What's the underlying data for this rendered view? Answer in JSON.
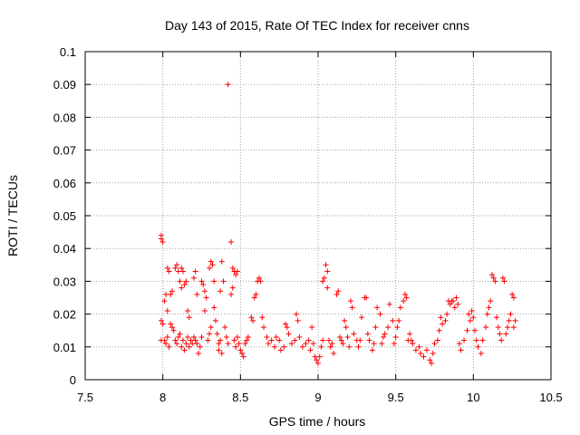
{
  "chart_data": {
    "type": "scatter",
    "title": "Day 143 of 2015, Rate Of TEC Index for receiver cnns",
    "xlabel": "GPS time / hours",
    "ylabel": "ROTI / TECUs",
    "xlim": [
      7.5,
      10.5
    ],
    "ylim": [
      0,
      0.1
    ],
    "xticks": [
      7.5,
      8,
      8.5,
      9,
      9.5,
      10,
      10.5
    ],
    "xtick_labels": [
      "7.5",
      "8",
      "8.5",
      "9",
      "9.5",
      "10",
      "10.5"
    ],
    "yticks": [
      0,
      0.01,
      0.02,
      0.03,
      0.04,
      0.05,
      0.06,
      0.07,
      0.08,
      0.09,
      0.1
    ],
    "ytick_labels": [
      "0",
      "0.01",
      "0.02",
      "0.03",
      "0.04",
      "0.05",
      "0.06",
      "0.07",
      "0.08",
      "0.09",
      "0.1"
    ],
    "grid": true,
    "marker": "+",
    "color": "#ff0000",
    "series": [
      {
        "name": "ROTI",
        "points": [
          [
            7.99,
            0.044
          ],
          [
            7.99,
            0.043
          ],
          [
            8.0,
            0.042
          ],
          [
            7.99,
            0.018
          ],
          [
            8.0,
            0.017
          ],
          [
            8.01,
            0.012
          ],
          [
            8.02,
            0.011
          ],
          [
            7.99,
            0.012
          ],
          [
            8.03,
            0.013
          ],
          [
            8.04,
            0.01
          ],
          [
            8.01,
            0.024
          ],
          [
            8.02,
            0.026
          ],
          [
            8.03,
            0.034
          ],
          [
            8.04,
            0.033
          ],
          [
            8.05,
            0.026
          ],
          [
            8.06,
            0.027
          ],
          [
            8.03,
            0.021
          ],
          [
            8.05,
            0.017
          ],
          [
            8.06,
            0.016
          ],
          [
            8.07,
            0.015
          ],
          [
            8.08,
            0.012
          ],
          [
            8.09,
            0.011
          ],
          [
            8.1,
            0.013
          ],
          [
            8.08,
            0.034
          ],
          [
            8.09,
            0.035
          ],
          [
            8.1,
            0.033
          ],
          [
            8.11,
            0.03
          ],
          [
            8.12,
            0.028
          ],
          [
            8.12,
            0.034
          ],
          [
            8.13,
            0.033
          ],
          [
            8.11,
            0.014
          ],
          [
            8.12,
            0.01
          ],
          [
            8.13,
            0.012
          ],
          [
            8.14,
            0.009
          ],
          [
            8.15,
            0.011
          ],
          [
            8.14,
            0.029
          ],
          [
            8.15,
            0.03
          ],
          [
            8.16,
            0.021
          ],
          [
            8.17,
            0.019
          ],
          [
            8.16,
            0.013
          ],
          [
            8.17,
            0.01
          ],
          [
            8.18,
            0.012
          ],
          [
            8.19,
            0.011
          ],
          [
            8.2,
            0.013
          ],
          [
            8.2,
            0.031
          ],
          [
            8.21,
            0.033
          ],
          [
            8.22,
            0.026
          ],
          [
            8.21,
            0.012
          ],
          [
            8.22,
            0.011
          ],
          [
            8.23,
            0.008
          ],
          [
            8.24,
            0.01
          ],
          [
            8.25,
            0.013
          ],
          [
            8.25,
            0.03
          ],
          [
            8.26,
            0.029
          ],
          [
            8.27,
            0.021
          ],
          [
            8.27,
            0.027
          ],
          [
            8.28,
            0.025
          ],
          [
            8.29,
            0.012
          ],
          [
            8.3,
            0.014
          ],
          [
            8.31,
            0.016
          ],
          [
            8.3,
            0.034
          ],
          [
            8.31,
            0.036
          ],
          [
            8.32,
            0.035
          ],
          [
            8.33,
            0.03
          ],
          [
            8.33,
            0.022
          ],
          [
            8.34,
            0.018
          ],
          [
            8.35,
            0.014
          ],
          [
            8.36,
            0.011
          ],
          [
            8.36,
            0.009
          ],
          [
            8.37,
            0.012
          ],
          [
            8.38,
            0.008
          ],
          [
            8.37,
            0.027
          ],
          [
            8.38,
            0.036
          ],
          [
            8.39,
            0.03
          ],
          [
            8.4,
            0.016
          ],
          [
            8.41,
            0.013
          ],
          [
            8.42,
            0.011
          ],
          [
            8.42,
            0.09
          ],
          [
            8.44,
            0.042
          ],
          [
            8.45,
            0.034
          ],
          [
            8.46,
            0.033
          ],
          [
            8.47,
            0.032
          ],
          [
            8.48,
            0.033
          ],
          [
            8.44,
            0.026
          ],
          [
            8.45,
            0.028
          ],
          [
            8.46,
            0.012
          ],
          [
            8.47,
            0.01
          ],
          [
            8.48,
            0.013
          ],
          [
            8.49,
            0.011
          ],
          [
            8.5,
            0.009
          ],
          [
            8.51,
            0.008
          ],
          [
            8.52,
            0.007
          ],
          [
            8.53,
            0.011
          ],
          [
            8.54,
            0.012
          ],
          [
            8.55,
            0.013
          ],
          [
            8.57,
            0.019
          ],
          [
            8.58,
            0.018
          ],
          [
            8.59,
            0.025
          ],
          [
            8.6,
            0.026
          ],
          [
            8.61,
            0.03
          ],
          [
            8.62,
            0.031
          ],
          [
            8.63,
            0.03
          ],
          [
            8.64,
            0.019
          ],
          [
            8.65,
            0.016
          ],
          [
            8.67,
            0.013
          ],
          [
            8.68,
            0.011
          ],
          [
            8.7,
            0.012
          ],
          [
            8.72,
            0.01
          ],
          [
            8.73,
            0.013
          ],
          [
            8.75,
            0.012
          ],
          [
            8.76,
            0.009
          ],
          [
            8.78,
            0.01
          ],
          [
            8.79,
            0.017
          ],
          [
            8.8,
            0.016
          ],
          [
            8.81,
            0.014
          ],
          [
            8.83,
            0.011
          ],
          [
            8.85,
            0.012
          ],
          [
            8.86,
            0.02
          ],
          [
            8.87,
            0.018
          ],
          [
            8.88,
            0.013
          ],
          [
            8.9,
            0.01
          ],
          [
            8.92,
            0.011
          ],
          [
            8.94,
            0.012
          ],
          [
            8.95,
            0.009
          ],
          [
            8.96,
            0.016
          ],
          [
            8.97,
            0.011
          ],
          [
            8.98,
            0.007
          ],
          [
            8.99,
            0.006
          ],
          [
            9.0,
            0.005
          ],
          [
            9.01,
            0.007
          ],
          [
            9.02,
            0.01
          ],
          [
            9.03,
            0.012
          ],
          [
            9.03,
            0.03
          ],
          [
            9.04,
            0.031
          ],
          [
            9.05,
            0.035
          ],
          [
            9.06,
            0.033
          ],
          [
            9.06,
            0.028
          ],
          [
            9.07,
            0.012
          ],
          [
            9.08,
            0.01
          ],
          [
            9.09,
            0.011
          ],
          [
            9.1,
            0.008
          ],
          [
            9.12,
            0.026
          ],
          [
            9.13,
            0.027
          ],
          [
            9.14,
            0.013
          ],
          [
            9.15,
            0.012
          ],
          [
            9.16,
            0.011
          ],
          [
            9.17,
            0.018
          ],
          [
            9.18,
            0.016
          ],
          [
            9.19,
            0.013
          ],
          [
            9.2,
            0.01
          ],
          [
            9.21,
            0.024
          ],
          [
            9.22,
            0.022
          ],
          [
            9.23,
            0.014
          ],
          [
            9.25,
            0.012
          ],
          [
            9.26,
            0.01
          ],
          [
            9.27,
            0.012
          ],
          [
            9.28,
            0.019
          ],
          [
            9.3,
            0.025
          ],
          [
            9.31,
            0.025
          ],
          [
            9.32,
            0.014
          ],
          [
            9.33,
            0.012
          ],
          [
            9.35,
            0.009
          ],
          [
            9.36,
            0.011
          ],
          [
            9.37,
            0.016
          ],
          [
            9.38,
            0.022
          ],
          [
            9.4,
            0.02
          ],
          [
            9.41,
            0.011
          ],
          [
            9.42,
            0.013
          ],
          [
            9.43,
            0.014
          ],
          [
            9.45,
            0.016
          ],
          [
            9.46,
            0.023
          ],
          [
            9.48,
            0.018
          ],
          [
            9.49,
            0.011
          ],
          [
            9.5,
            0.013
          ],
          [
            9.51,
            0.016
          ],
          [
            9.52,
            0.018
          ],
          [
            9.53,
            0.022
          ],
          [
            9.55,
            0.024
          ],
          [
            9.56,
            0.026
          ],
          [
            9.57,
            0.025
          ],
          [
            9.58,
            0.012
          ],
          [
            9.59,
            0.014
          ],
          [
            9.6,
            0.012
          ],
          [
            9.61,
            0.011
          ],
          [
            9.63,
            0.009
          ],
          [
            9.65,
            0.01
          ],
          [
            9.66,
            0.008
          ],
          [
            9.68,
            0.007
          ],
          [
            9.7,
            0.009
          ],
          [
            9.72,
            0.006
          ],
          [
            9.73,
            0.005
          ],
          [
            9.74,
            0.008
          ],
          [
            9.75,
            0.011
          ],
          [
            9.77,
            0.012
          ],
          [
            9.78,
            0.015
          ],
          [
            9.79,
            0.019
          ],
          [
            9.8,
            0.017
          ],
          [
            9.82,
            0.018
          ],
          [
            9.83,
            0.02
          ],
          [
            9.84,
            0.024
          ],
          [
            9.85,
            0.023
          ],
          [
            9.86,
            0.024
          ],
          [
            9.87,
            0.024
          ],
          [
            9.88,
            0.022
          ],
          [
            9.89,
            0.025
          ],
          [
            9.9,
            0.023
          ],
          [
            9.91,
            0.011
          ],
          [
            9.92,
            0.009
          ],
          [
            9.94,
            0.012
          ],
          [
            9.96,
            0.015
          ],
          [
            9.97,
            0.02
          ],
          [
            9.98,
            0.018
          ],
          [
            9.99,
            0.021
          ],
          [
            10.0,
            0.019
          ],
          [
            10.01,
            0.015
          ],
          [
            10.02,
            0.012
          ],
          [
            10.03,
            0.01
          ],
          [
            10.05,
            0.008
          ],
          [
            10.06,
            0.012
          ],
          [
            10.08,
            0.016
          ],
          [
            10.09,
            0.02
          ],
          [
            10.1,
            0.022
          ],
          [
            10.11,
            0.024
          ],
          [
            10.12,
            0.032
          ],
          [
            10.13,
            0.031
          ],
          [
            10.14,
            0.03
          ],
          [
            10.15,
            0.019
          ],
          [
            10.16,
            0.016
          ],
          [
            10.17,
            0.014
          ],
          [
            10.18,
            0.012
          ],
          [
            10.19,
            0.031
          ],
          [
            10.2,
            0.03
          ],
          [
            10.21,
            0.014
          ],
          [
            10.22,
            0.016
          ],
          [
            10.23,
            0.018
          ],
          [
            10.24,
            0.02
          ],
          [
            10.25,
            0.026
          ],
          [
            10.26,
            0.025
          ],
          [
            10.26,
            0.016
          ],
          [
            10.27,
            0.018
          ]
        ]
      }
    ]
  }
}
